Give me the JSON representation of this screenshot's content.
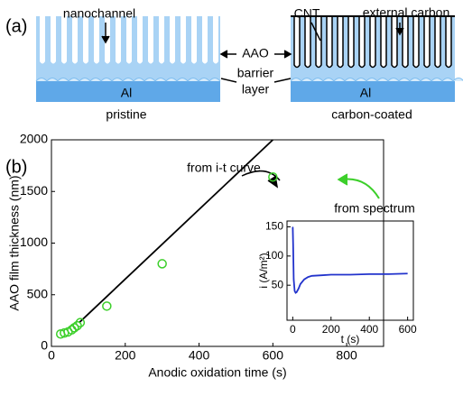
{
  "panel_a": {
    "label": "(a)",
    "nanochannel": "nanochannel",
    "aao": "AAO",
    "barrier": "barrier",
    "layer": "layer",
    "cnt": "CNT",
    "external_carbon": "external carbon",
    "al_left": "Al",
    "al_right": "Al",
    "pristine": "pristine",
    "carbon_coated": "carbon-coated"
  },
  "panel_b": {
    "label": "(b)"
  },
  "chart_data": [
    {
      "type": "scatter",
      "x_label": "Anodic oxidation time (s)",
      "y_label": "AAO film thickness (nm)",
      "annotations": [
        "from i-t curve",
        "from spectrum"
      ],
      "series": [
        {
          "mode": "line",
          "color": "#000000",
          "x": [
            75,
            600
          ],
          "values": [
            230,
            2000
          ]
        },
        {
          "mode": "markers",
          "color": "#3ccf2a",
          "x": [
            25,
            35,
            45,
            55,
            62,
            70,
            78,
            150,
            300,
            600
          ],
          "values": [
            120,
            130,
            140,
            160,
            180,
            200,
            230,
            390,
            800,
            1640
          ]
        }
      ],
      "xlim": [
        0,
        900
      ],
      "ylim": [
        0,
        2000
      ],
      "xticks": [
        0,
        200,
        400,
        600,
        800
      ],
      "yticks": [
        0,
        500,
        1000,
        1500,
        2000
      ]
    },
    {
      "type": "line",
      "x_label": "t (s)",
      "y_label": "i (A/m²)",
      "series": [
        {
          "color": "#2233cc",
          "x": [
            0,
            2,
            5,
            10,
            15,
            20,
            30,
            40,
            60,
            80,
            100,
            150,
            200,
            300,
            400,
            500,
            600
          ],
          "values": [
            150,
            120,
            60,
            40,
            37,
            38,
            44,
            52,
            60,
            64,
            66,
            67,
            68,
            68,
            69,
            69,
            70
          ]
        }
      ],
      "xlim": [
        -30,
        630
      ],
      "ylim": [
        -10,
        160
      ],
      "xticks": [
        0,
        200,
        400,
        600
      ],
      "yticks": [
        50,
        100,
        150
      ]
    }
  ]
}
